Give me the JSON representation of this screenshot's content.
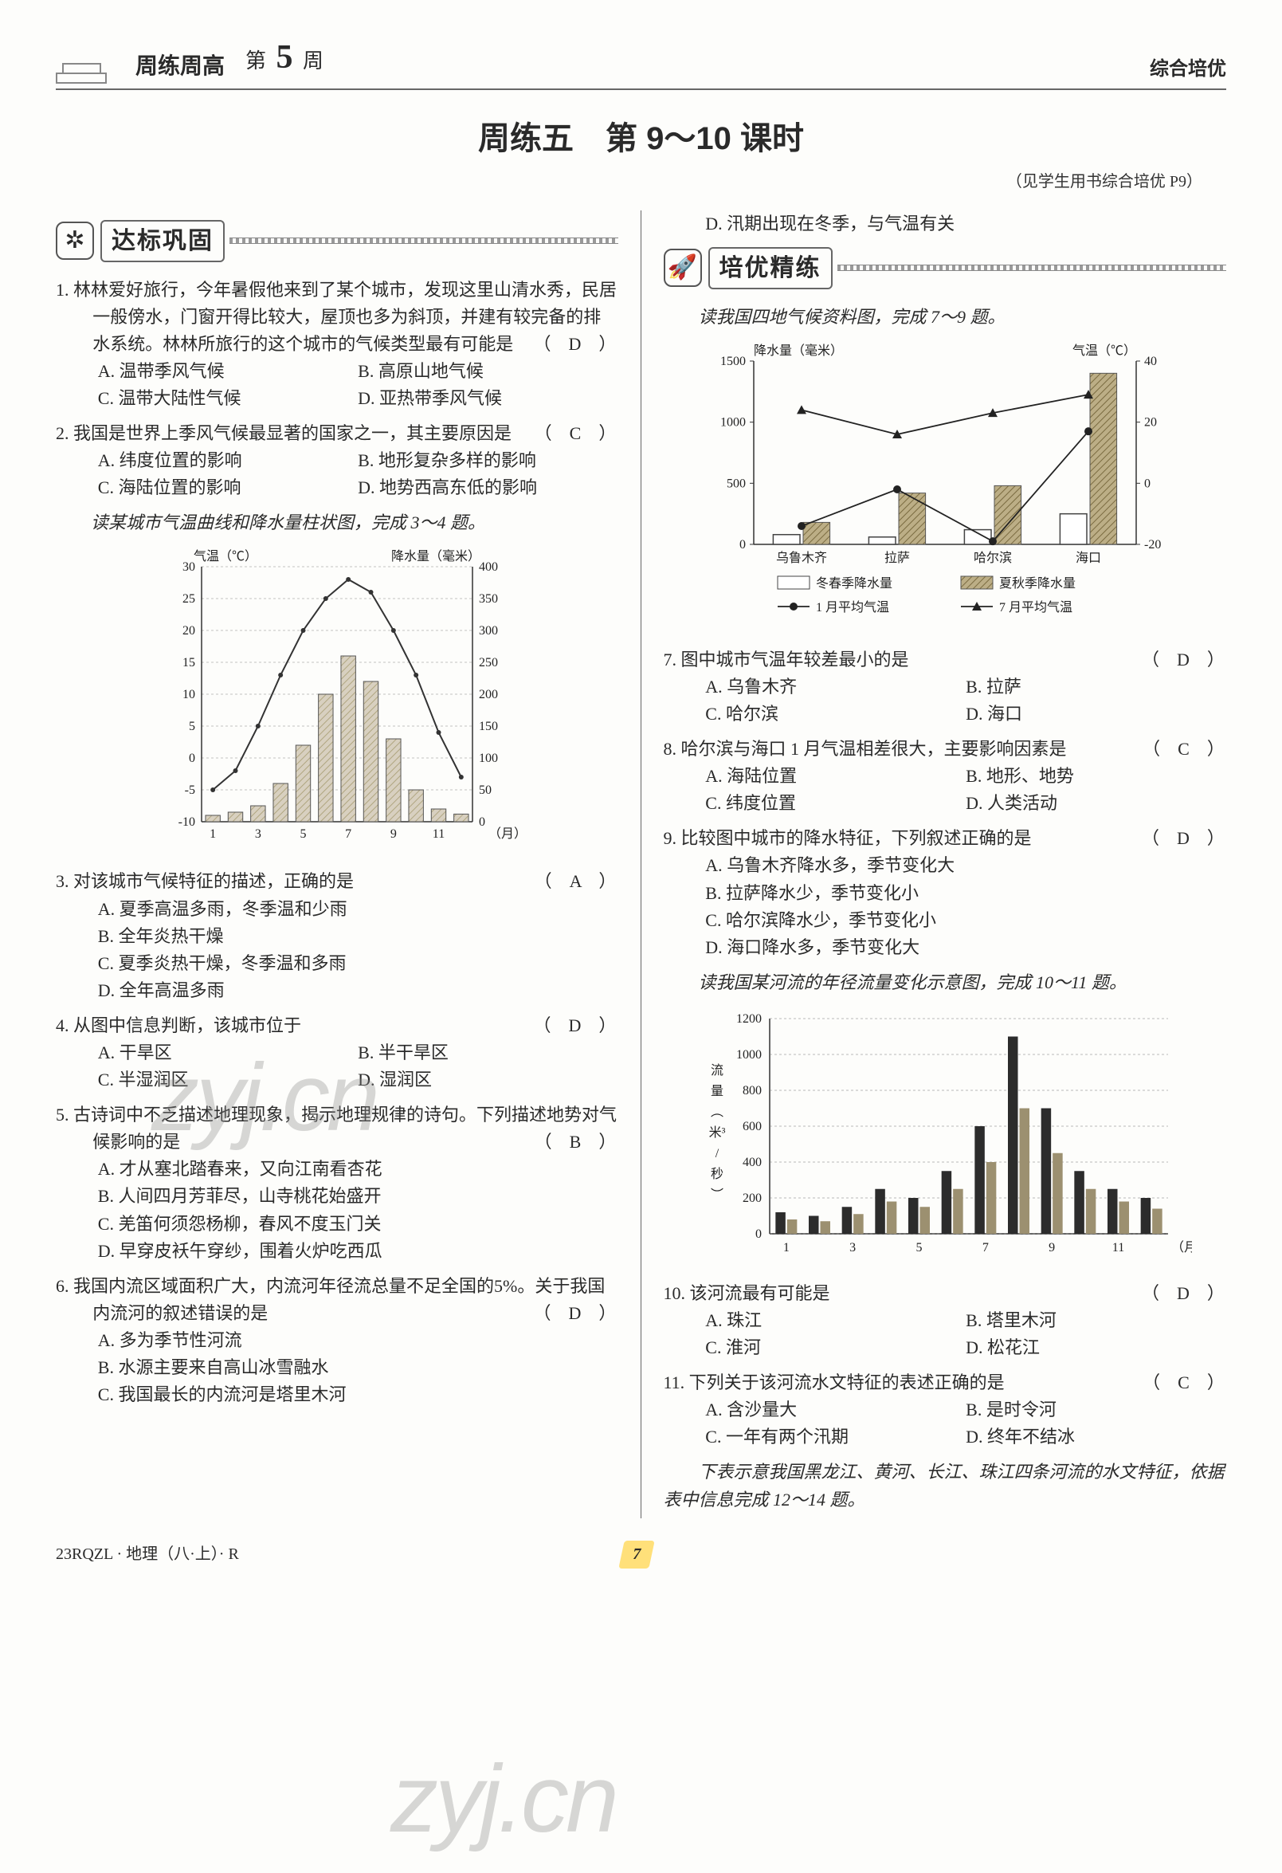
{
  "header": {
    "series": "周练周高",
    "week_prefix": "第",
    "week_num": "5",
    "week_suffix": "周",
    "right": "综合培优"
  },
  "lesson": {
    "main": "周练五　第 9～10 课时",
    "note": "（见学生用书综合培优 P9）"
  },
  "sections": {
    "s1": "达标巩固",
    "s2": "培优精练"
  },
  "watermarks": [
    "zyj.cn",
    "zyj.cn"
  ],
  "q1": {
    "stem": "1. 林林爱好旅行，今年暑假他来到了某个城市，发现这里山清水秀，民居一般傍水，门窗开得比较大，屋顶也多为斜顶，并建有较完备的排水系统。林林所旅行的这个城市的气候类型最有可能是",
    "ans": "（　D　）",
    "A": "A. 温带季风气候",
    "B": "B. 高原山地气候",
    "C": "C. 温带大陆性气候",
    "D": "D. 亚热带季风气候"
  },
  "q2": {
    "stem": "2. 我国是世界上季风气候最显著的国家之一，其主要原因是",
    "ans": "（　C　）",
    "A": "A. 纬度位置的影响",
    "B": "B. 地形复杂多样的影响",
    "C": "C. 海陆位置的影响",
    "D": "D. 地势西高东低的影响"
  },
  "lead34": "读某城市气温曲线和降水量柱状图，完成 3～4 题。",
  "chart34": {
    "temp_label": "气温（℃）",
    "precip_label": "降水量（毫米）",
    "x_label": "（月）",
    "temp_ticks": [
      -10,
      -5,
      0,
      5,
      10,
      15,
      20,
      25,
      30
    ],
    "precip_ticks": [
      0,
      50,
      100,
      150,
      200,
      250,
      300,
      350,
      400
    ],
    "x_ticks": [
      1,
      3,
      5,
      7,
      9,
      11
    ],
    "temp_vals": [
      -5,
      -2,
      5,
      13,
      20,
      25,
      28,
      26,
      20,
      13,
      4,
      -3
    ],
    "precip_vals": [
      10,
      15,
      25,
      60,
      120,
      200,
      260,
      220,
      130,
      50,
      20,
      12
    ],
    "temp_color": "#333333",
    "bar_fill": "#d8d0c0",
    "bar_pattern": "#b0a680",
    "grid_color": "#888888",
    "bg": "#fdfdfb"
  },
  "q3": {
    "stem": "3. 对该城市气候特征的描述，正确的是",
    "ans": "（　A　）",
    "A": "A. 夏季高温多雨，冬季温和少雨",
    "B": "B. 全年炎热干燥",
    "C": "C. 夏季炎热干燥，冬季温和多雨",
    "D": "D. 全年高温多雨"
  },
  "q4": {
    "stem": "4. 从图中信息判断，该城市位于",
    "ans": "（　D　）",
    "A": "A. 干旱区",
    "B": "B. 半干旱区",
    "C": "C. 半湿润区",
    "D": "D. 湿润区"
  },
  "q5": {
    "stem": "5. 古诗词中不乏描述地理现象，揭示地理规律的诗句。下列描述地势对气候影响的是",
    "ans": "（　B　）",
    "A": "A. 才从塞北踏春来，又向江南看杏花",
    "B": "B. 人间四月芳菲尽，山寺桃花始盛开",
    "C": "C. 羌笛何须怨杨柳，春风不度玉门关",
    "D": "D. 早穿皮袄午穿纱，围着火炉吃西瓜"
  },
  "q6": {
    "stem": "6. 我国内流区域面积广大，内流河年径流总量不足全国的5%。关于我国内流河的叙述错误的是",
    "ans": "（　D　）",
    "A": "A. 多为季节性河流",
    "B": "B. 水源主要来自高山冰雪融水",
    "C": "C. 我国最长的内流河是塔里木河",
    "D": "D. 汛期出现在冬季，与气温有关"
  },
  "lead79": "读我国四地气候资料图，完成 7～9 题。",
  "chart79": {
    "y1_label": "降水量（毫米）",
    "y2_label": "气温（℃）",
    "y1_ticks": [
      0,
      500,
      1000,
      1500
    ],
    "y2_ticks": [
      -20,
      0,
      20,
      40
    ],
    "cities": [
      "乌鲁木齐",
      "拉萨",
      "哈尔滨",
      "海口"
    ],
    "winter_spring_precip": [
      80,
      60,
      120,
      250
    ],
    "summer_autumn_precip": [
      180,
      420,
      480,
      1400
    ],
    "jan_temp": [
      -14,
      -2,
      -19,
      17
    ],
    "jul_temp": [
      24,
      16,
      23,
      29
    ],
    "ws_color": "#ffffff",
    "ws_border": "#444",
    "sa_color": "#bcae86",
    "jan_marker": "circle",
    "jan_color": "#222",
    "jul_marker": "triangle",
    "jul_color": "#222",
    "legend": {
      "ws": "冬春季降水量",
      "sa": "夏秋季降水量",
      "jan": "1 月平均气温",
      "jul": "7 月平均气温"
    }
  },
  "q7": {
    "stem": "7. 图中城市气温年较差最小的是",
    "ans": "（　D　）",
    "A": "A. 乌鲁木齐",
    "B": "B. 拉萨",
    "C": "C. 哈尔滨",
    "D": "D. 海口"
  },
  "q8": {
    "stem": "8. 哈尔滨与海口 1 月气温相差很大，主要影响因素是",
    "ans": "（　C　）",
    "A": "A. 海陆位置",
    "B": "B. 地形、地势",
    "C": "C. 纬度位置",
    "D": "D. 人类活动"
  },
  "q9": {
    "stem": "9. 比较图中城市的降水特征，下列叙述正确的是",
    "ans": "（　D　）",
    "A": "A. 乌鲁木齐降水多，季节变化大",
    "B": "B. 拉萨降水少，季节变化小",
    "C": "C. 哈尔滨降水少，季节变化小",
    "D": "D. 海口降水多，季节变化大"
  },
  "lead1011": "读我国某河流的年径流量变化示意图，完成 10～11 题。",
  "chart1011": {
    "y_label_lines": [
      "流",
      "量",
      "︵",
      "米³",
      "/",
      "秒",
      "︶"
    ],
    "y_ticks": [
      0,
      200,
      400,
      600,
      800,
      1000,
      1200
    ],
    "x_ticks": [
      1,
      3,
      5,
      7,
      9,
      11
    ],
    "x_label": "（月）",
    "a_vals": [
      120,
      100,
      150,
      250,
      200,
      350,
      600,
      1100,
      700,
      350,
      250,
      200
    ],
    "b_vals": [
      80,
      70,
      110,
      180,
      150,
      250,
      400,
      700,
      450,
      250,
      180,
      140
    ],
    "a_color": "#2c2c2c",
    "b_color": "#9c9070",
    "grid_color": "#777"
  },
  "q10": {
    "stem": "10. 该河流最有可能是",
    "ans": "（　D　）",
    "A": "A. 珠江",
    "B": "B. 塔里木河",
    "C": "C. 淮河",
    "D": "D. 松花江"
  },
  "q11": {
    "stem": "11. 下列关于该河流水文特征的表述正确的是",
    "ans": "（　C　）",
    "A": "A. 含沙量大",
    "B": "B. 是时令河",
    "C": "C. 一年有两个汛期",
    "D": "D. 终年不结冰"
  },
  "lead1214": "下表示意我国黑龙江、黄河、长江、珠江四条河流的水文特征，依据表中信息完成 12～14 题。",
  "footer": {
    "code": "23RQZL · 地理（八·上）· R",
    "page": "7"
  }
}
